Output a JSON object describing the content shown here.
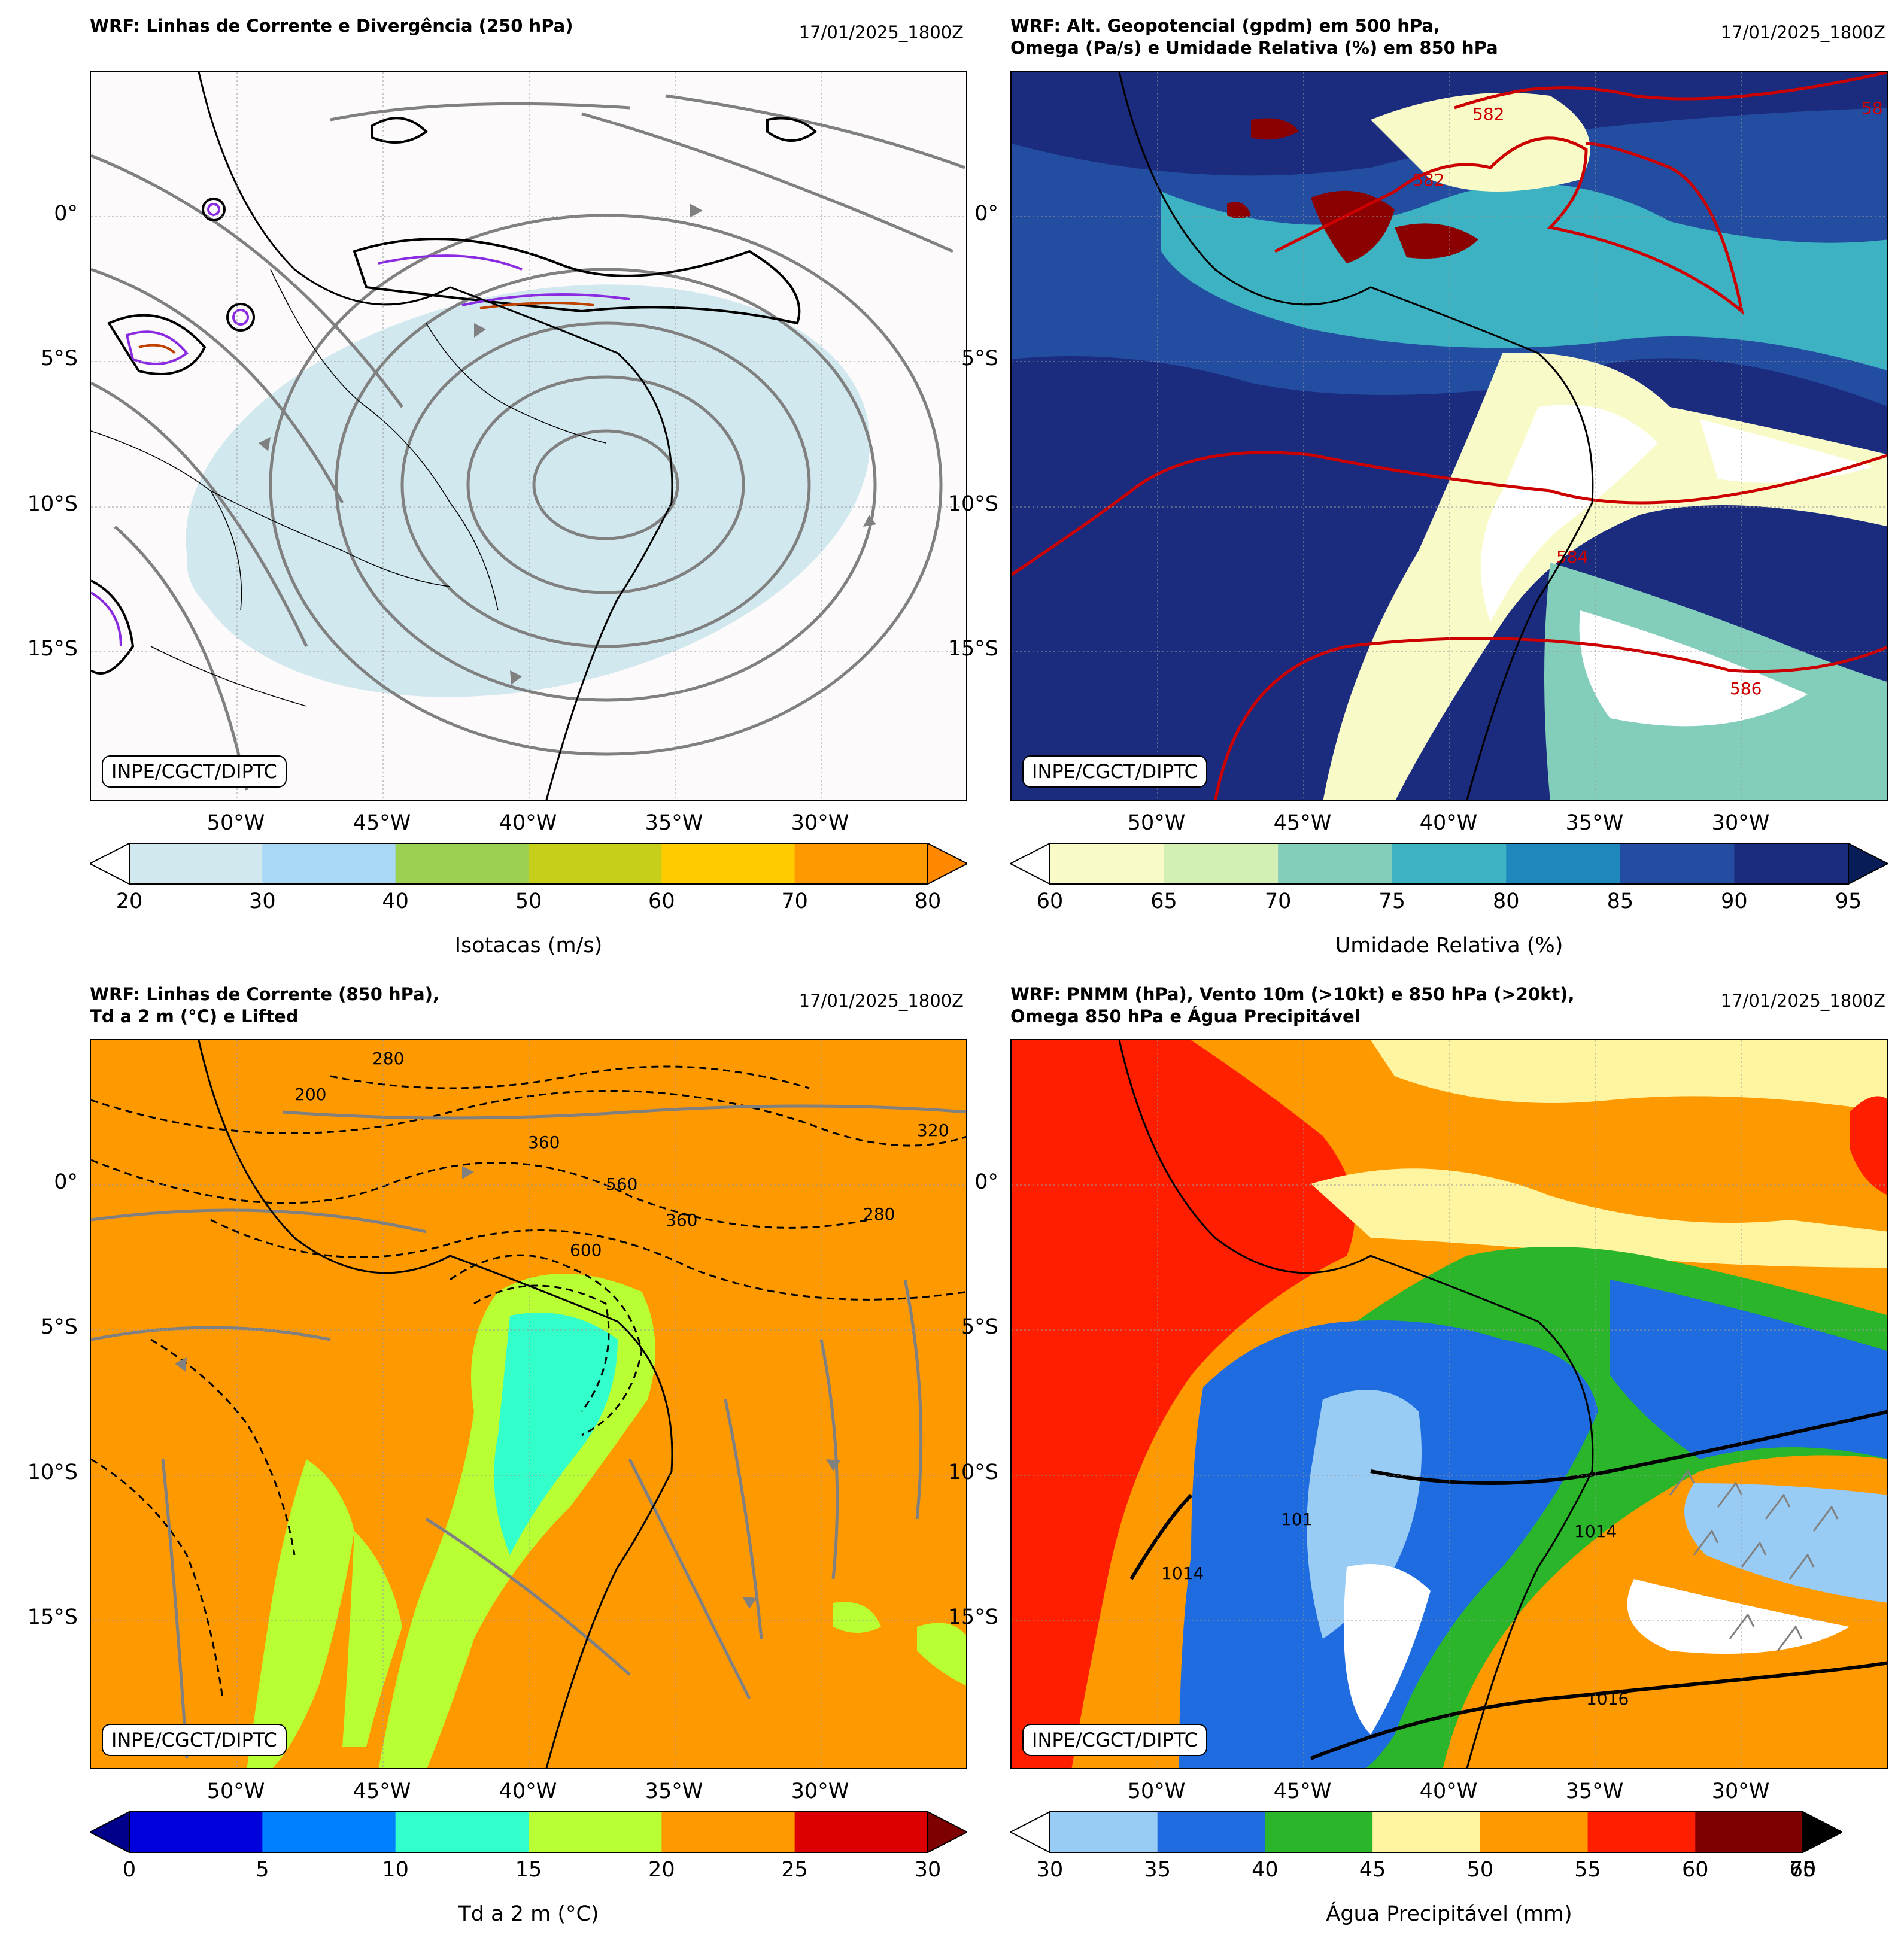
{
  "panels": [
    {
      "title": "WRF: Linhas de Corrente e Divergência (250 hPa)",
      "date": "17/01/2025_1800Z",
      "credit": "INPE/CGCT/DIPTC",
      "lat_ticks": [
        "0°",
        "5°S",
        "10°S",
        "15°S"
      ],
      "lon_ticks": [
        "50°W",
        "45°W",
        "40°W",
        "35°W",
        "30°W"
      ],
      "colorbar": {
        "title": "Isotacas (m/s)",
        "ticks": [
          "20",
          "30",
          "40",
          "50",
          "60",
          "70",
          "80"
        ],
        "colors": [
          "#d0e8ee",
          "#a9d8f7",
          "#9bd052",
          "#c6cf1a",
          "#ffcc00",
          "#ff9900"
        ],
        "under": "#ffffff",
        "over": "#ff8800"
      },
      "contour_labels": []
    },
    {
      "title": "WRF: Alt. Geopotencial (gpdm) em 500 hPa,\nOmega (Pa/s) e Umidade Relativa (%) em 850 hPa",
      "date": "17/01/2025_1800Z",
      "credit": "INPE/CGCT/DIPTC",
      "lat_ticks": [
        "0°",
        "5°S",
        "10°S",
        "15°S"
      ],
      "lon_ticks": [
        "50°W",
        "45°W",
        "40°W",
        "35°W",
        "30°W"
      ],
      "colorbar": {
        "title": "Umidade Relativa (%)",
        "ticks": [
          "60",
          "65",
          "70",
          "75",
          "80",
          "85",
          "90",
          "95"
        ],
        "colors": [
          "#f8fac8",
          "#d4efb4",
          "#83cdbb",
          "#3db2c2",
          "#1e88bd",
          "#224da0",
          "#1b2b7e"
        ],
        "under": "#ffffff",
        "over": "#081d58"
      },
      "contour_labels": [
        "582",
        "582",
        "584",
        "586",
        "58"
      ]
    },
    {
      "title": "WRF: Linhas de Corrente (850 hPa),\nTd a 2 m (°C) e Lifted",
      "date": "17/01/2025_1800Z",
      "credit": "INPE/CGCT/DIPTC",
      "lat_ticks": [
        "0°",
        "5°S",
        "10°S",
        "15°S"
      ],
      "lon_ticks": [
        "50°W",
        "45°W",
        "40°W",
        "35°W",
        "30°W"
      ],
      "colorbar": {
        "title": "Td a 2 m (°C)",
        "ticks": [
          "0",
          "5",
          "10",
          "15",
          "20",
          "25",
          "30"
        ],
        "colors": [
          "#0000dd",
          "#0080ff",
          "#33ffcc",
          "#b8ff33",
          "#ff9900",
          "#dd0000"
        ],
        "under": "#00008b",
        "over": "#7f0000"
      },
      "contour_labels": [
        "280",
        "200",
        "600",
        "560",
        "360",
        "280",
        "320",
        "360"
      ]
    },
    {
      "title": "WRF: PNMM (hPa), Vento 10m (>10kt) e 850 hPa (>20kt),\nOmega 850 hPa e Água Precipitável",
      "date": "17/01/2025_1800Z",
      "credit": "INPE/CGCT/DIPTC",
      "lat_ticks": [
        "0°",
        "5°S",
        "10°S",
        "15°S"
      ],
      "lon_ticks": [
        "50°W",
        "45°W",
        "40°W",
        "35°W",
        "30°W"
      ],
      "colorbar": {
        "title": "Água Precipitável (mm)",
        "ticks": [
          "30",
          "35",
          "40",
          "45",
          "50",
          "55",
          "60",
          "70"
        ],
        "extra_tick": "65",
        "colors": [
          "#99ccf5",
          "#1e6ce0",
          "#2ab52a",
          "#fff5a0",
          "#ff9900",
          "#ff1f00",
          "#7f0000"
        ],
        "under": "#ffffff",
        "over": "#000000"
      },
      "contour_labels": [
        "1014",
        "1016",
        "1014",
        "101"
      ]
    }
  ]
}
